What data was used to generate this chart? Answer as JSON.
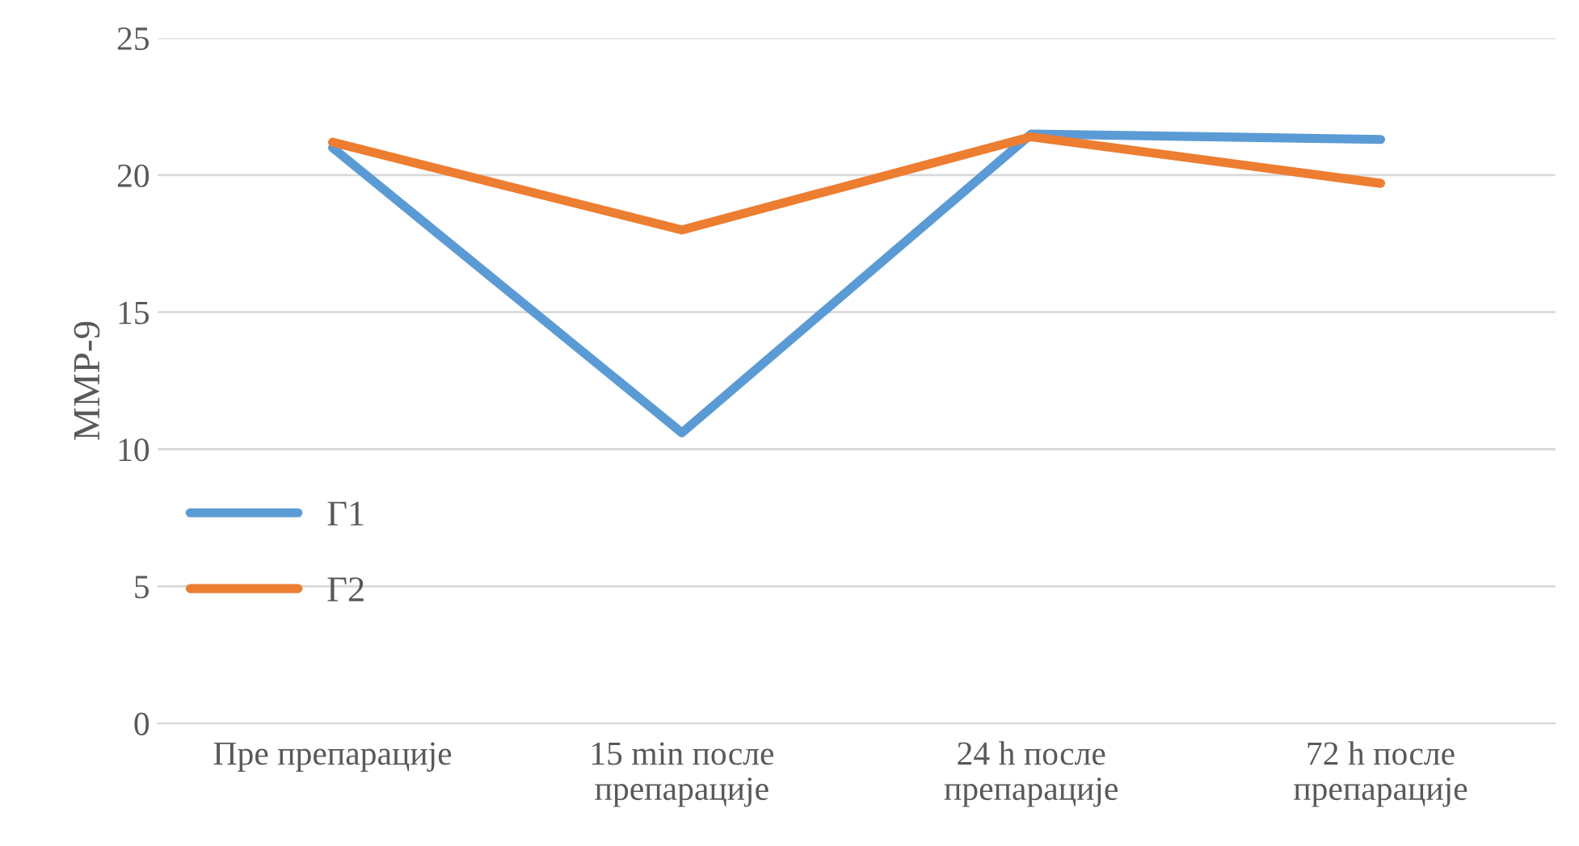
{
  "chart_data": {
    "type": "line",
    "ylabel": "MMP-9",
    "categories": [
      "Пре препарације",
      "15 min после\nпрепарације",
      "24 h после\nпрепарације",
      "72 h после\nпрепарације"
    ],
    "series": [
      {
        "name": "Г1",
        "color": "#5b9bd5",
        "values": [
          21.0,
          10.6,
          21.5,
          21.3
        ]
      },
      {
        "name": "Г2",
        "color": "#ed7d31",
        "values": [
          21.2,
          18.0,
          21.4,
          19.7
        ]
      }
    ],
    "ylim": [
      0,
      25
    ],
    "yticks": [
      0,
      5,
      10,
      15,
      20,
      25
    ],
    "grid": "y",
    "legend": "bottom left",
    "marker": "none",
    "line_style": "solid"
  }
}
